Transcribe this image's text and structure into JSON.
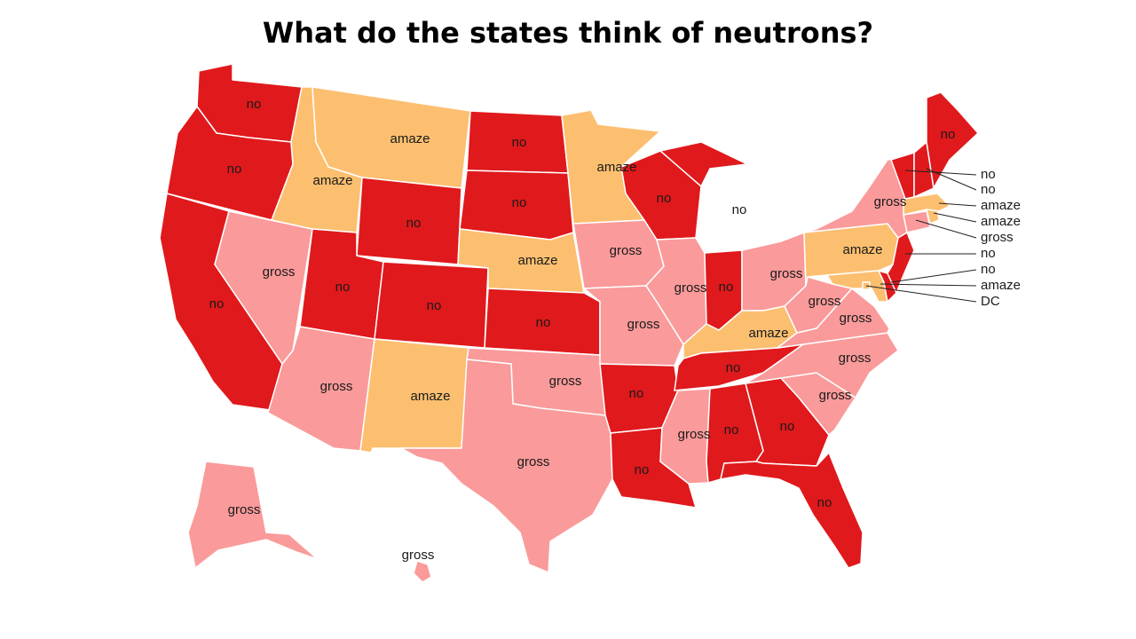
{
  "title": "What do the states think of neutrons?",
  "colors": {
    "no": "#e0191c",
    "gross": "#fa9a9a",
    "amaze": "#fcbf70"
  },
  "states": {
    "WA": "no",
    "OR": "no",
    "CA": "no",
    "ID": "amaze",
    "NV": "gross",
    "MT": "amaze",
    "WY": "no",
    "UT": "no",
    "AZ": "gross",
    "CO": "no",
    "NM": "amaze",
    "ND": "no",
    "SD": "no",
    "NE": "amaze",
    "KS": "no",
    "OK": "gross",
    "TX": "gross",
    "MN": "amaze",
    "IA": "gross",
    "MO": "gross",
    "AR": "no",
    "LA": "no",
    "WI": "no",
    "IL": "gross",
    "MI": "no",
    "IN": "no",
    "OH": "gross",
    "KY": "amaze",
    "TN": "no",
    "MS": "gross",
    "AL": "no",
    "GA": "no",
    "FL": "no",
    "SC": "gross",
    "NC": "gross",
    "VA": "gross",
    "WV": "gross",
    "PA": "amaze",
    "NY": "gross",
    "ME": "no",
    "VT": "no",
    "NH": "no",
    "MA": "amaze",
    "RI": "amaze",
    "CT": "gross",
    "NJ": "no",
    "DE": "no",
    "MD": "amaze",
    "DC": "DC",
    "AK": "gross",
    "HI": "gross"
  },
  "labels": {
    "WA": "no",
    "OR": "no",
    "CA": "no",
    "ID": "amaze",
    "NV": "gross",
    "MT": "amaze",
    "WY": "no",
    "UT": "no",
    "AZ": "gross",
    "CO": "no",
    "NM": "amaze",
    "ND": "no",
    "SD": "no",
    "NE": "amaze",
    "KS": "no",
    "OK": "gross",
    "TX": "gross",
    "MN": "amaze",
    "IA": "gross",
    "MO": "gross",
    "AR": "no",
    "LA": "no",
    "WI": "no",
    "IL": "gross",
    "MI": "no",
    "IN": "no",
    "OH": "gross",
    "KY": "amaze",
    "TN": "no",
    "MS": "gross",
    "AL": "no",
    "GA": "no",
    "FL": "no",
    "SC": "gross",
    "NC": "gross",
    "VA": "gross",
    "WV": "gross",
    "PA": "amaze",
    "NY": "gross",
    "ME": "no",
    "AK": "gross",
    "HI": "gross"
  },
  "side_labels": {
    "VT": "no",
    "NH": "no",
    "MA": "amaze",
    "RI": "amaze",
    "CT": "gross",
    "NJ": "no",
    "DE": "no",
    "MD": "amaze",
    "DC": "DC"
  }
}
